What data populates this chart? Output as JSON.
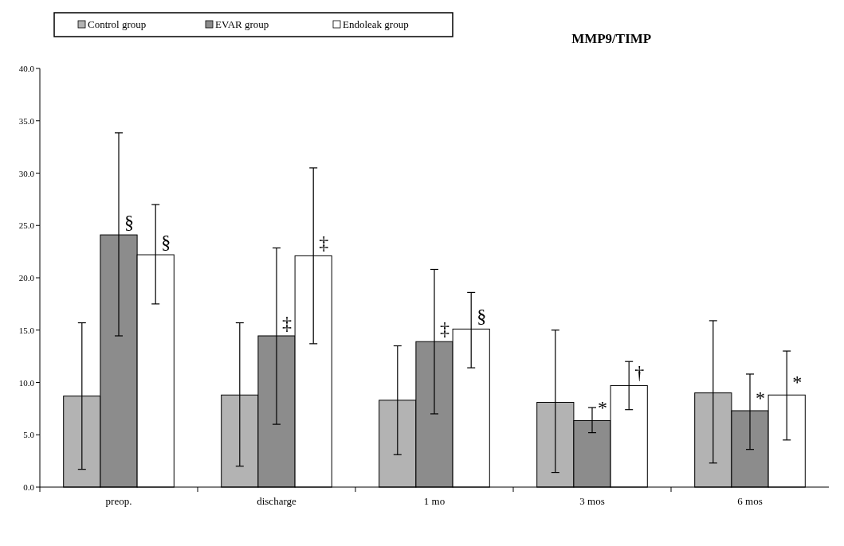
{
  "chart_data": {
    "type": "bar",
    "title": "MMP9/TIMP",
    "categories": [
      "preop.",
      "discharge",
      "1 mo",
      "3 mos",
      "6 mos"
    ],
    "series": [
      {
        "name": "Control group",
        "color": "#b3b3b3",
        "values": [
          8.7,
          8.8,
          8.3,
          8.1,
          9.0
        ],
        "errors": [
          [
            1.7,
            15.7
          ],
          [
            2.0,
            15.7
          ],
          [
            3.1,
            13.5
          ],
          [
            1.4,
            15.0
          ],
          [
            2.3,
            15.9
          ]
        ]
      },
      {
        "name": "EVAR group",
        "color": "#8c8c8c",
        "values": [
          24.1,
          14.45,
          13.9,
          6.35,
          7.3
        ],
        "errors": [
          [
            14.45,
            33.85
          ],
          [
            6.0,
            22.85
          ],
          [
            7.0,
            20.8
          ],
          [
            5.2,
            7.6
          ],
          [
            3.6,
            10.8
          ]
        ],
        "value_labels": [
          "§",
          "‡",
          "‡",
          "*",
          "*"
        ]
      },
      {
        "name": "Endoleak group",
        "color": "#ffffff",
        "values": [
          22.2,
          22.1,
          15.1,
          9.7,
          8.8
        ],
        "errors": [
          [
            17.5,
            27.0
          ],
          [
            13.7,
            30.5
          ],
          [
            11.4,
            18.6
          ],
          [
            7.4,
            12.0
          ],
          [
            4.5,
            13.0
          ]
        ],
        "value_labels": [
          "§",
          "‡",
          "§",
          "†",
          "*"
        ]
      }
    ],
    "ylim": [
      0,
      40
    ],
    "yticks": [
      {
        "value": 0,
        "label": "0.0"
      },
      {
        "value": 5,
        "label": "5.0"
      },
      {
        "value": 10,
        "label": "10.0"
      },
      {
        "value": 15,
        "label": "15.0"
      },
      {
        "value": 20,
        "label": "20.0"
      },
      {
        "value": 25,
        "label": "25.0"
      },
      {
        "value": 30,
        "label": "30.0"
      },
      {
        "value": 35,
        "label": "35.0"
      },
      {
        "value": 40,
        "label": "40.0"
      }
    ],
    "legend": "top left",
    "grid": false
  }
}
